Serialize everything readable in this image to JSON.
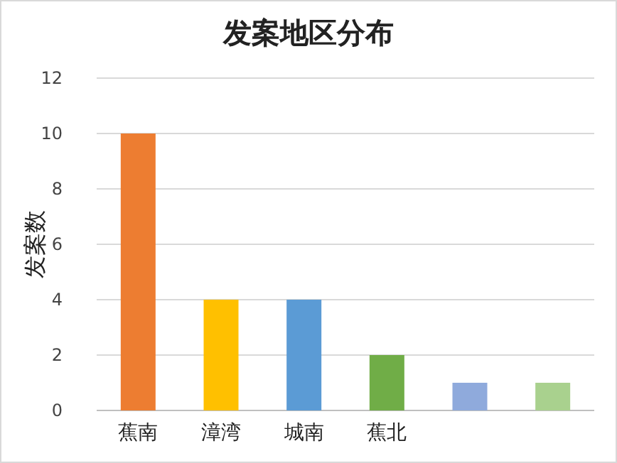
{
  "chart_data": {
    "type": "bar",
    "title": "发案地区分布",
    "ylabel": "发案数",
    "categories": [
      "蕉南",
      "漳湾",
      "城南",
      "蕉北",
      null,
      null
    ],
    "values": [
      10,
      4,
      4,
      2,
      1,
      1
    ],
    "colors": [
      "#ed7d31",
      "#ffc000",
      "#5b9bd5",
      "#70ad47",
      "#8faadc",
      "#a9d18e"
    ],
    "ylim": [
      0,
      12
    ],
    "yticks": [
      0,
      2,
      4,
      6,
      8,
      10,
      12
    ],
    "grid": "y"
  }
}
